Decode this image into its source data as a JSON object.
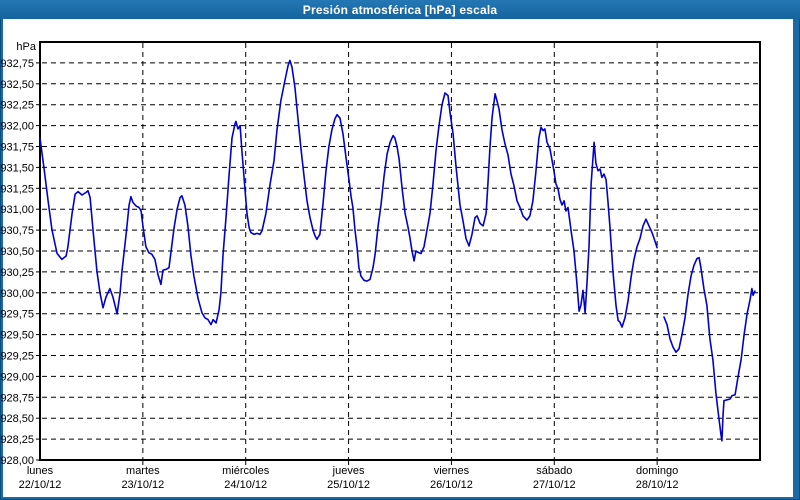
{
  "window": {
    "title": "Presión atmosférica [hPa] escala",
    "frame_color": "#1a6aa6",
    "title_text_color": "#ffffff"
  },
  "chart_data": {
    "type": "line",
    "title": "Presión atmosférica [hPa] escala",
    "line_color": "#0202cc",
    "grid": {
      "horizontal_dashed": true,
      "vertical_dashed": true
    },
    "y_axis": {
      "unit_label": "hPa",
      "min": 928.0,
      "max": 933.0,
      "tick_step": 0.25,
      "tick_labels": [
        "932,75",
        "932,50",
        "932,25",
        "932,00",
        "931,75",
        "931,50",
        "931,25",
        "931,00",
        "930,75",
        "930,50",
        "930,25",
        "930,00",
        "929,75",
        "929,50",
        "929,25",
        "929,00",
        "928,75",
        "928,50",
        "928,25",
        "928,00"
      ]
    },
    "x_axis": {
      "hours_total": 168,
      "days": [
        {
          "name": "lunes",
          "date": "22/10/12"
        },
        {
          "name": "martes",
          "date": "23/10/12"
        },
        {
          "name": "miércoles",
          "date": "24/10/12"
        },
        {
          "name": "jueves",
          "date": "25/10/12"
        },
        {
          "name": "viernes",
          "date": "26/10/12"
        },
        {
          "name": "sábado",
          "date": "27/10/12"
        },
        {
          "name": "domingo",
          "date": "28/10/12"
        }
      ]
    },
    "series": [
      {
        "name": "presión atmosférica",
        "unit": "hPa",
        "x_unit": "hours since lunes 22/10/12 00:00",
        "segments": [
          [
            [
              0,
              931.85
            ],
            [
              0.9,
              931.5
            ],
            [
              1.9,
              931.1
            ],
            [
              2.8,
              930.75
            ],
            [
              4,
              930.47
            ],
            [
              5.1,
              930.4
            ],
            [
              6.1,
              930.44
            ],
            [
              6.5,
              930.55
            ],
            [
              7.5,
              930.95
            ],
            [
              8.2,
              931.18
            ],
            [
              8.9,
              931.21
            ],
            [
              9.8,
              931.17
            ],
            [
              10.7,
              931.2
            ],
            [
              11.2,
              931.22
            ],
            [
              11.7,
              931.14
            ],
            [
              12.4,
              930.74
            ],
            [
              13.3,
              930.25
            ],
            [
              14,
              930
            ],
            [
              14.7,
              929.82
            ],
            [
              15.4,
              929.95
            ],
            [
              16.3,
              930.05
            ],
            [
              17,
              929.95
            ],
            [
              18,
              929.75
            ],
            [
              18.7,
              930
            ],
            [
              19.1,
              930.25
            ],
            [
              20.1,
              930.7
            ],
            [
              20.8,
              931.05
            ],
            [
              21.2,
              931.15
            ],
            [
              21.7,
              931.08
            ],
            [
              22.4,
              931.04
            ],
            [
              23.1,
              931.02
            ],
            [
              23.6,
              930.98
            ],
            [
              24,
              930.8
            ],
            [
              24.7,
              930.55
            ],
            [
              25.4,
              930.48
            ],
            [
              26.1,
              930.46
            ],
            [
              26.8,
              930.4
            ],
            [
              27.5,
              930.22
            ],
            [
              28.2,
              930.1
            ],
            [
              28.7,
              930.27
            ],
            [
              29.4,
              930.28
            ],
            [
              30.1,
              930.3
            ],
            [
              30.6,
              930.5
            ],
            [
              31.3,
              930.78
            ],
            [
              32,
              931
            ],
            [
              32.7,
              931.14
            ],
            [
              33.1,
              931.16
            ],
            [
              33.8,
              931.05
            ],
            [
              34.5,
              930.8
            ],
            [
              35.2,
              930.45
            ],
            [
              35.9,
              930.2
            ],
            [
              36.9,
              929.93
            ],
            [
              37.8,
              929.76
            ],
            [
              38.5,
              929.7
            ],
            [
              39.2,
              929.68
            ],
            [
              39.9,
              929.62
            ],
            [
              40.4,
              929.68
            ],
            [
              41.1,
              929.64
            ],
            [
              41.8,
              929.8
            ],
            [
              42.2,
              930
            ],
            [
              42.7,
              930.45
            ],
            [
              43.4,
              930.9
            ],
            [
              44.1,
              931.4
            ],
            [
              44.8,
              931.85
            ],
            [
              45.5,
              932.02
            ],
            [
              45.7,
              932.05
            ],
            [
              46.2,
              931.96
            ],
            [
              46.7,
              932
            ],
            [
              47.1,
              931.7
            ],
            [
              47.8,
              931.25
            ],
            [
              48.3,
              930.95
            ],
            [
              48.8,
              930.78
            ],
            [
              49.2,
              930.72
            ],
            [
              49.9,
              930.7
            ],
            [
              50.6,
              930.71
            ],
            [
              51.3,
              930.7
            ],
            [
              51.8,
              930.74
            ],
            [
              52.7,
              930.95
            ],
            [
              53.7,
              931.3
            ],
            [
              54.6,
              931.58
            ],
            [
              55.3,
              931.95
            ],
            [
              56.2,
              932.3
            ],
            [
              57.2,
              932.55
            ],
            [
              57.9,
              932.72
            ],
            [
              58.3,
              932.78
            ],
            [
              58.8,
              932.7
            ],
            [
              59.5,
              932.45
            ],
            [
              60.2,
              932.08
            ],
            [
              60.9,
              931.72
            ],
            [
              61.6,
              931.4
            ],
            [
              62.3,
              931.1
            ],
            [
              63,
              930.9
            ],
            [
              63.7,
              930.75
            ],
            [
              64.2,
              930.68
            ],
            [
              64.6,
              930.64
            ],
            [
              65.3,
              930.7
            ],
            [
              66,
              931.05
            ],
            [
              66.7,
              931.45
            ],
            [
              67.4,
              931.75
            ],
            [
              68.1,
              931.95
            ],
            [
              68.8,
              932.08
            ],
            [
              69.3,
              932.13
            ],
            [
              70,
              932.09
            ],
            [
              70.7,
              931.9
            ],
            [
              71.4,
              931.62
            ],
            [
              72.1,
              931.35
            ],
            [
              72.6,
              931.15
            ],
            [
              73,
              931.02
            ],
            [
              73.5,
              930.75
            ],
            [
              74,
              930.54
            ],
            [
              74.4,
              930.3
            ],
            [
              74.9,
              930.2
            ],
            [
              75.6,
              930.15
            ],
            [
              76.3,
              930.14
            ],
            [
              77,
              930.16
            ],
            [
              77.7,
              930.3
            ],
            [
              78.2,
              930.46
            ],
            [
              78.9,
              930.8
            ],
            [
              79.6,
              931.06
            ],
            [
              80.3,
              931.4
            ],
            [
              81,
              931.66
            ],
            [
              81.7,
              931.8
            ],
            [
              82.4,
              931.88
            ],
            [
              82.8,
              931.85
            ],
            [
              83.3,
              931.75
            ],
            [
              83.8,
              931.6
            ],
            [
              84.5,
              931.25
            ],
            [
              85.2,
              930.95
            ],
            [
              85.9,
              930.78
            ],
            [
              86.3,
              930.66
            ],
            [
              86.8,
              930.5
            ],
            [
              87.3,
              930.38
            ],
            [
              87.7,
              930.5
            ],
            [
              88.4,
              930.48
            ],
            [
              88.9,
              930.47
            ],
            [
              89.6,
              930.55
            ],
            [
              90.3,
              930.75
            ],
            [
              91,
              930.95
            ],
            [
              91.7,
              931.3
            ],
            [
              92.4,
              931.7
            ],
            [
              93.1,
              932
            ],
            [
              93.8,
              932.25
            ],
            [
              94.5,
              932.39
            ],
            [
              95.2,
              932.36
            ],
            [
              95.7,
              932.15
            ],
            [
              96.4,
              931.9
            ],
            [
              97.1,
              931.5
            ],
            [
              98,
              931.05
            ],
            [
              98.7,
              930.86
            ],
            [
              99.4,
              930.65
            ],
            [
              100.1,
              930.56
            ],
            [
              100.8,
              930.7
            ],
            [
              101.5,
              930.9
            ],
            [
              102,
              930.92
            ],
            [
              102.7,
              930.83
            ],
            [
              103.4,
              930.8
            ],
            [
              104.1,
              930.95
            ],
            [
              104.5,
              931.3
            ],
            [
              105,
              931.75
            ],
            [
              105.5,
              932.1
            ],
            [
              106.2,
              932.38
            ],
            [
              106.6,
              932.3
            ],
            [
              107.1,
              932.2
            ],
            [
              107.8,
              931.95
            ],
            [
              108.5,
              931.78
            ],
            [
              109.2,
              931.65
            ],
            [
              109.9,
              931.42
            ],
            [
              110.6,
              931.28
            ],
            [
              111.3,
              931.1
            ],
            [
              112,
              931.02
            ],
            [
              112.7,
              930.92
            ],
            [
              113.6,
              930.87
            ],
            [
              114.3,
              930.92
            ],
            [
              115,
              931.1
            ],
            [
              115.7,
              931.45
            ],
            [
              116.4,
              931.85
            ],
            [
              116.9,
              931.98
            ],
            [
              117.4,
              931.94
            ],
            [
              117.8,
              931.96
            ],
            [
              118.3,
              931.8
            ],
            [
              119,
              931.72
            ],
            [
              119.5,
              931.58
            ],
            [
              119.9,
              931.46
            ],
            [
              120.4,
              931.3
            ],
            [
              120.9,
              931.24
            ],
            [
              121.3,
              931.12
            ],
            [
              121.8,
              931.05
            ],
            [
              122.3,
              931.1
            ],
            [
              122.7,
              930.98
            ],
            [
              123.2,
              931.02
            ],
            [
              123.9,
              930.75
            ],
            [
              124.6,
              930.5
            ],
            [
              125.3,
              930.1
            ],
            [
              125.8,
              929.78
            ],
            [
              126.2,
              929.85
            ],
            [
              126.7,
              930.03
            ],
            [
              127.2,
              929.76
            ],
            [
              127.6,
              930.1
            ],
            [
              128.1,
              930.55
            ],
            [
              128.6,
              931.3
            ],
            [
              129.3,
              931.8
            ],
            [
              129.7,
              931.55
            ],
            [
              130.2,
              931.46
            ],
            [
              130.7,
              931.48
            ],
            [
              131.1,
              931.38
            ],
            [
              131.6,
              931.42
            ],
            [
              132.1,
              931.35
            ],
            [
              132.5,
              931.1
            ],
            [
              133,
              930.78
            ],
            [
              133.7,
              930.25
            ],
            [
              134.4,
              929.85
            ],
            [
              134.9,
              929.67
            ],
            [
              135.3,
              929.65
            ],
            [
              135.8,
              929.59
            ],
            [
              136.5,
              929.7
            ],
            [
              137.2,
              929.9
            ],
            [
              137.9,
              930.18
            ],
            [
              138.6,
              930.4
            ],
            [
              139.3,
              930.55
            ],
            [
              140,
              930.65
            ],
            [
              140.7,
              930.8
            ],
            [
              141.4,
              930.88
            ],
            [
              142.1,
              930.8
            ],
            [
              142.8,
              930.72
            ],
            [
              143.3,
              930.65
            ],
            [
              144,
              930.54
            ]
          ],
          [
            [
              145.6,
              929.71
            ],
            [
              146.3,
              929.62
            ],
            [
              147,
              929.45
            ],
            [
              147.7,
              929.35
            ],
            [
              148.4,
              929.29
            ],
            [
              149.1,
              929.33
            ],
            [
              149.8,
              929.5
            ],
            [
              150.5,
              929.7
            ],
            [
              151.2,
              929.98
            ],
            [
              151.9,
              930.2
            ],
            [
              152.6,
              930.33
            ],
            [
              153.3,
              930.41
            ],
            [
              153.8,
              930.42
            ],
            [
              154.2,
              930.3
            ],
            [
              154.9,
              930.05
            ],
            [
              155.6,
              929.85
            ],
            [
              156.3,
              929.45
            ],
            [
              157,
              929.2
            ],
            [
              157.7,
              928.8
            ],
            [
              158.4,
              928.5
            ],
            [
              158.9,
              928.3
            ],
            [
              159.1,
              928.23
            ],
            [
              159.4,
              928.55
            ],
            [
              159.6,
              928.71
            ],
            [
              160.3,
              928.72
            ],
            [
              161,
              928.73
            ],
            [
              161.5,
              928.77
            ],
            [
              162.2,
              928.78
            ],
            [
              162.9,
              929
            ],
            [
              163.6,
              929.2
            ],
            [
              164.3,
              929.5
            ],
            [
              165,
              929.75
            ],
            [
              165.7,
              929.92
            ],
            [
              166.1,
              930.05
            ],
            [
              166.4,
              929.97
            ],
            [
              166.8,
              930.02
            ]
          ]
        ]
      }
    ]
  }
}
